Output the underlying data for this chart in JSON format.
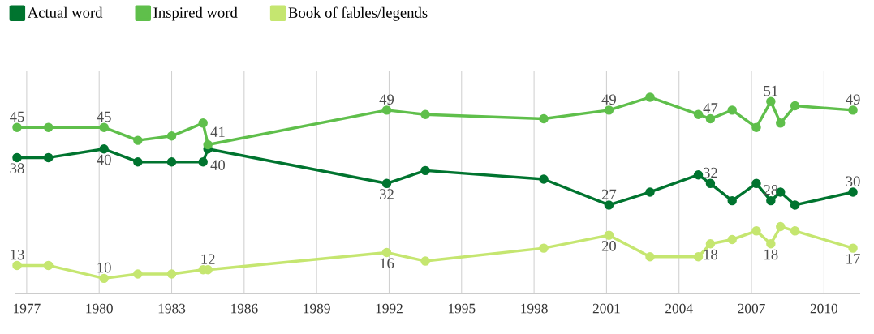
{
  "chart_data": {
    "type": "line",
    "x": [
      1976.6,
      1977.9,
      1980.2,
      1981.6,
      1983.0,
      1984.3,
      1984.5,
      1991.9,
      1993.5,
      1998.4,
      2001.1,
      2002.8,
      2004.8,
      2005.3,
      2006.2,
      2007.2,
      2007.8,
      2008.2,
      2008.8,
      2011.2
    ],
    "series": [
      {
        "name": "Actual word",
        "color": "#00742f",
        "values": [
          38,
          38,
          40,
          37,
          37,
          37,
          40,
          32,
          35,
          33,
          27,
          30,
          34,
          32,
          28,
          32,
          28,
          30,
          27,
          30
        ],
        "value_labels": [
          "38",
          null,
          "40",
          null,
          null,
          null,
          "40",
          "32",
          null,
          null,
          "27",
          null,
          null,
          "32",
          null,
          null,
          "28",
          null,
          null,
          "30"
        ]
      },
      {
        "name": "Inspired word",
        "color": "#5fbf4b",
        "values": [
          45,
          45,
          45,
          42,
          43,
          46,
          41,
          49,
          48,
          47,
          49,
          52,
          48,
          47,
          49,
          45,
          51,
          46,
          50,
          49
        ],
        "value_labels": [
          "45",
          null,
          "45",
          null,
          null,
          null,
          "41",
          "49",
          null,
          null,
          "49",
          null,
          null,
          "47",
          null,
          null,
          "51",
          null,
          null,
          "49"
        ]
      },
      {
        "name": "Book of fables/legends",
        "color": "#c5e670",
        "values": [
          13,
          13,
          10,
          11,
          11,
          12,
          12,
          16,
          14,
          17,
          20,
          15,
          15,
          18,
          19,
          21,
          18,
          22,
          21,
          17
        ],
        "value_labels": [
          "13",
          null,
          "10",
          null,
          null,
          null,
          "12",
          "16",
          null,
          null,
          "20",
          null,
          null,
          "18",
          null,
          null,
          "18",
          null,
          null,
          "17"
        ]
      }
    ],
    "xlim": [
      1976.5,
      2011.5
    ],
    "ylim": [
      6.5,
      58
    ],
    "xticks": [
      1977,
      1980,
      1983,
      1986,
      1989,
      1992,
      1995,
      1998,
      2001,
      2004,
      2007,
      2010
    ],
    "tick_labels": "x",
    "grid": "x",
    "legend": "top",
    "marker": "circle",
    "line_style": "solid"
  }
}
